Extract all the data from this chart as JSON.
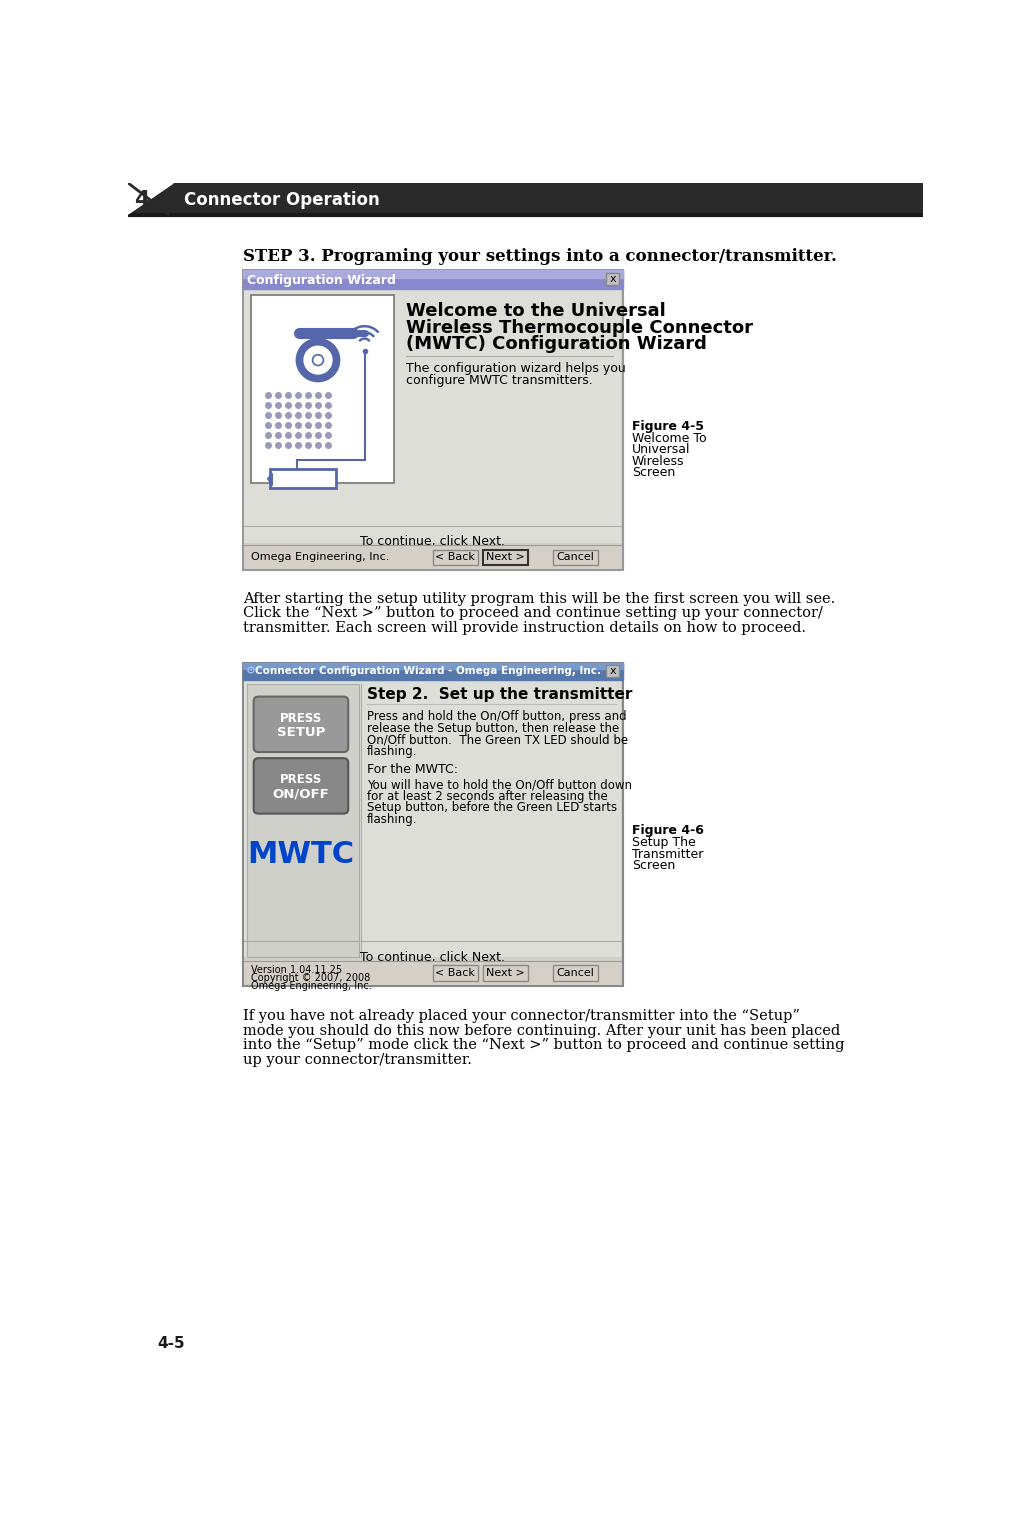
{
  "bg_color": "#ffffff",
  "header_text": "Connector Operation",
  "header_num": "4",
  "page_num": "4-5",
  "step_title": "STEP 3. Programing your settings into a connector/transmitter.",
  "para1_lines": [
    "After starting the setup utility program this will be the first screen you will see.",
    "Click the “Next >” button to proceed and continue setting up your connector/",
    "transmitter. Each screen will provide instruction details on how to proceed."
  ],
  "para2_lines": [
    "If you have not already placed your connector/transmitter into the “Setup”",
    "mode you should do this now before continuing. After your unit has been placed",
    "into the “Setup” mode click the “Next >” button to proceed and continue setting",
    "up your connector/transmitter."
  ],
  "fig45_caption": [
    "Figure 4-5",
    "Welcome To",
    "Universal",
    "Wireless",
    "Screen"
  ],
  "fig46_caption": [
    "Figure 4-6",
    "Setup The",
    "Transmitter",
    "Screen"
  ],
  "win1_title": "Configuration Wizard",
  "win1_big_text": [
    "Welcome to the Universal",
    "Wireless Thermocouple Connector",
    "(MWTC) Configuration Wizard"
  ],
  "win1_small_text": [
    "The configuration wizard helps you",
    "configure MWTC transmitters."
  ],
  "win1_bottom_text": "To continue, click Next.",
  "win1_footer": "Omega Engineering, Inc.",
  "win2_title": "Connector Configuration Wizard - Omega Engineering, Inc.",
  "win2_icon_text": "⚙",
  "win2_step_title": "Step 2.  Set up the transmitter",
  "win2_para1": [
    "Press and hold the On/Off button, press and",
    "release the Setup button, then release the",
    "On/Off button.  The Green TX LED should be",
    "flashing."
  ],
  "win2_para2_label": "For the MWTC:",
  "win2_para2": [
    "You will have to hold the On/Off button down",
    "for at least 2 seconds after releasing the",
    "Setup button, before the Green LED starts",
    "flashing."
  ],
  "win2_bottom_text": "To continue, click Next.",
  "win2_version": "Version 1.04.11.25",
  "win2_copyright": "Copyright © 2007, 2008",
  "win2_company": "Omega Engineering, Inc.",
  "win1_titlebar_color": "#6666aa",
  "win2_titlebar_color": "#4a7aaa",
  "win_bg_color": "#d4d0c8",
  "win_img_bg": "#d4d0c8",
  "icon_color": "#5566aa",
  "mwtc_color": "#0044cc",
  "setup_btn_color": "#888888",
  "onoff_btn_color": "#777777"
}
